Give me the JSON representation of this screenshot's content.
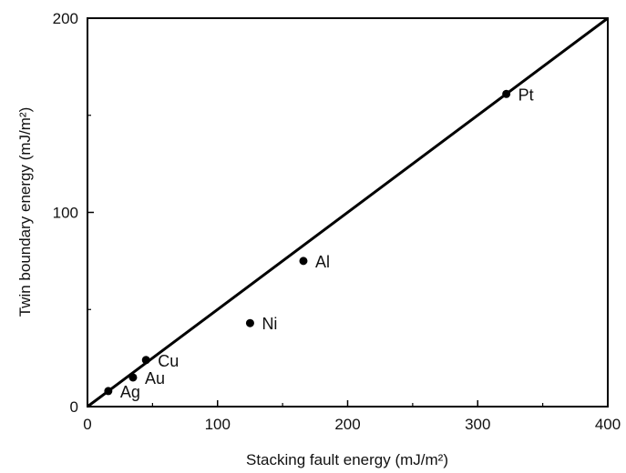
{
  "chart_data": {
    "type": "scatter",
    "xlabel": "Stacking fault energy (mJ/m²)",
    "ylabel": "Twin boundary energy (mJ/m²)",
    "xlim": [
      0,
      400
    ],
    "ylim": [
      0,
      200
    ],
    "x_ticks": [
      0,
      100,
      200,
      300,
      400
    ],
    "y_ticks": [
      0,
      100,
      200
    ],
    "x_tick_labels": [
      "0",
      "100",
      "200",
      "300",
      "400"
    ],
    "y_tick_labels": [
      "0",
      "100",
      "200"
    ],
    "grid": false,
    "points": [
      {
        "label": "Ag",
        "x": 16,
        "y": 8
      },
      {
        "label": "Au",
        "x": 35,
        "y": 15
      },
      {
        "label": "Cu",
        "x": 45,
        "y": 24
      },
      {
        "label": "Ni",
        "x": 125,
        "y": 43
      },
      {
        "label": "Al",
        "x": 166,
        "y": 75
      },
      {
        "label": "Pt",
        "x": 322,
        "y": 161
      }
    ],
    "fit_line": {
      "x": [
        0,
        400
      ],
      "y": [
        0,
        200
      ]
    },
    "colors": {
      "ink": "#000000",
      "text": "#111111"
    }
  }
}
